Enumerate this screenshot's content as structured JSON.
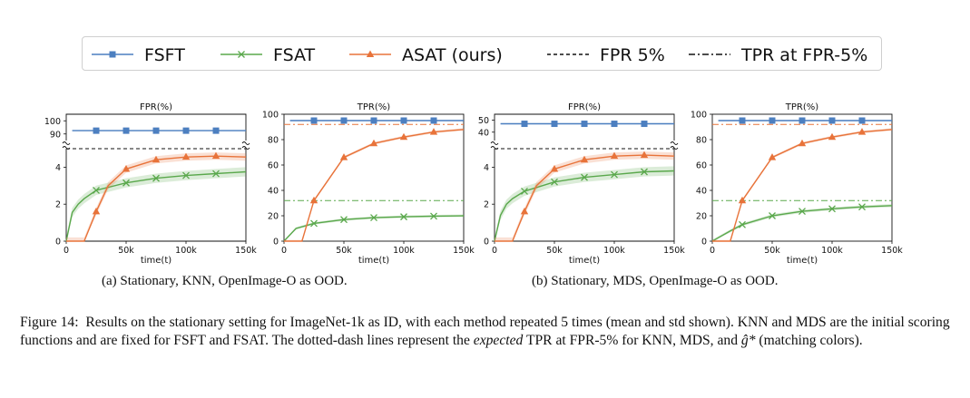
{
  "legend": {
    "entries": [
      {
        "label": "FSFT",
        "color": "#4c7fc0",
        "style": "solid",
        "marker": "square"
      },
      {
        "label": "FSAT",
        "color": "#5aa84c",
        "style": "solid",
        "marker": "x"
      },
      {
        "label": "ASAT (ours)",
        "color": "#e8733a",
        "style": "solid",
        "marker": "triangle"
      },
      {
        "label": "FPR 5%",
        "color": "#111111",
        "style": "dashed",
        "marker": "none"
      },
      {
        "label": "TPR at FPR-5%",
        "color": "#111111",
        "style": "dashdot",
        "marker": "none"
      }
    ]
  },
  "subcaptions": {
    "a": "(a)  Stationary, KNN, OpenImage-O as OOD.",
    "b": "(b)  Stationary, MDS, OpenImage-O as OOD."
  },
  "caption": {
    "label": "Figure 14:",
    "text_1": "Results on the stationary setting for ImageNet-1k as ID, with each method repeated 5 times (mean and std shown). KNN and MDS are the initial scoring functions and are fixed for FSFT and FSAT. The dotted-dash lines represent the ",
    "emph": "expected",
    "text_2": " TPR at FPR-5% for KNN, MDS, and ",
    "math": "ĝ*",
    "text_3": " (matching colors)."
  },
  "chart_data": [
    {
      "type": "line",
      "title": "FPR(%)",
      "xlabel": "time(t)",
      "x_ticks": [
        "0",
        "50k",
        "100k",
        "150k"
      ],
      "xlim": [
        0,
        150000
      ],
      "broken_axis": true,
      "upper_ylim": [
        85,
        105
      ],
      "upper_yticks": [
        "90",
        "100"
      ],
      "lower_ylim": [
        0,
        5
      ],
      "lower_yticks": [
        "0",
        "2",
        "4"
      ],
      "reference_line": {
        "name": "FPR 5%",
        "y": 5,
        "style": "dashed"
      },
      "series": [
        {
          "name": "FSFT",
          "x": [
            5000,
            25000,
            50000,
            75000,
            100000,
            125000,
            150000
          ],
          "y": [
            92.5,
            92.5,
            92.5,
            92.5,
            92.5,
            92.5,
            92.5
          ],
          "band": 0.5
        },
        {
          "name": "FSAT",
          "x": [
            0,
            5000,
            10000,
            15000,
            25000,
            50000,
            75000,
            100000,
            125000,
            150000
          ],
          "y": [
            0,
            1.55,
            2.0,
            2.3,
            2.75,
            3.15,
            3.4,
            3.55,
            3.65,
            3.75
          ],
          "band": 0.25
        },
        {
          "name": "ASAT (ours)",
          "x": [
            0,
            15000,
            25000,
            35000,
            50000,
            75000,
            100000,
            125000,
            150000
          ],
          "y": [
            0,
            0,
            1.6,
            3.0,
            3.9,
            4.4,
            4.55,
            4.6,
            4.55
          ],
          "band": 0.2
        }
      ]
    },
    {
      "type": "line",
      "title": "TPR(%)",
      "xlabel": "time(t)",
      "x_ticks": [
        "0",
        "50k",
        "100k",
        "150k"
      ],
      "xlim": [
        0,
        150000
      ],
      "ylim": [
        0,
        100
      ],
      "y_ticks": [
        "0",
        "20",
        "40",
        "60",
        "80",
        "100"
      ],
      "reference_lines": [
        {
          "name": "TPR at FPR-5%",
          "y": 32,
          "color": "#5aa84c",
          "style": "dashdot"
        },
        {
          "name": "TPR at FPR-5%",
          "y": 92,
          "color": "#e8733a",
          "style": "dashdot"
        }
      ],
      "series": [
        {
          "name": "FSFT",
          "x": [
            5000,
            25000,
            50000,
            75000,
            100000,
            125000,
            150000
          ],
          "y": [
            95,
            95,
            95,
            95,
            95,
            95,
            95
          ],
          "band": 0.5
        },
        {
          "name": "FSAT",
          "x": [
            0,
            10000,
            25000,
            50000,
            75000,
            100000,
            125000,
            150000
          ],
          "y": [
            0,
            10,
            14,
            17,
            18.5,
            19.2,
            19.7,
            20
          ],
          "band": 1.0
        },
        {
          "name": "ASAT (ours)",
          "x": [
            0,
            15000,
            25000,
            50000,
            75000,
            100000,
            125000,
            150000
          ],
          "y": [
            0,
            0,
            32,
            66,
            77,
            82,
            86,
            88
          ],
          "band": 1.0
        }
      ]
    },
    {
      "type": "line",
      "title": "FPR(%)",
      "xlabel": "time(t)",
      "x_ticks": [
        "0",
        "50k",
        "100k",
        "150k"
      ],
      "xlim": [
        0,
        150000
      ],
      "broken_axis": true,
      "upper_ylim": [
        33,
        55
      ],
      "upper_yticks": [
        "40",
        "50"
      ],
      "lower_ylim": [
        0,
        5
      ],
      "lower_yticks": [
        "0",
        "2",
        "4"
      ],
      "reference_line": {
        "name": "FPR 5%",
        "y": 5,
        "style": "dashed"
      },
      "series": [
        {
          "name": "FSFT",
          "x": [
            5000,
            25000,
            50000,
            75000,
            100000,
            125000,
            150000
          ],
          "y": [
            47.0,
            47.0,
            47.0,
            47.0,
            47.0,
            47.0,
            47.0
          ],
          "band": 0.5
        },
        {
          "name": "FSAT",
          "x": [
            0,
            5000,
            10000,
            15000,
            25000,
            50000,
            75000,
            100000,
            125000,
            150000
          ],
          "y": [
            0,
            1.4,
            2.0,
            2.3,
            2.7,
            3.2,
            3.45,
            3.6,
            3.75,
            3.8
          ],
          "band": 0.25
        },
        {
          "name": "ASAT (ours)",
          "x": [
            0,
            15000,
            25000,
            35000,
            50000,
            75000,
            100000,
            125000,
            150000
          ],
          "y": [
            0,
            0,
            1.6,
            3.0,
            3.9,
            4.4,
            4.6,
            4.65,
            4.6
          ],
          "band": 0.2
        }
      ]
    },
    {
      "type": "line",
      "title": "TPR(%)",
      "xlabel": "time(t)",
      "x_ticks": [
        "0",
        "50k",
        "100k",
        "150k"
      ],
      "xlim": [
        0,
        150000
      ],
      "ylim": [
        0,
        100
      ],
      "y_ticks": [
        "0",
        "20",
        "40",
        "60",
        "80",
        "100"
      ],
      "reference_lines": [
        {
          "name": "TPR at FPR-5%",
          "y": 32,
          "color": "#5aa84c",
          "style": "dashdot"
        },
        {
          "name": "TPR at FPR-5%",
          "y": 92,
          "color": "#e8733a",
          "style": "dashdot"
        }
      ],
      "series": [
        {
          "name": "FSFT",
          "x": [
            5000,
            25000,
            50000,
            75000,
            100000,
            125000,
            150000
          ],
          "y": [
            95,
            95,
            95,
            95,
            95,
            95,
            95
          ],
          "band": 0.5
        },
        {
          "name": "FSAT",
          "x": [
            0,
            15000,
            25000,
            50000,
            75000,
            100000,
            125000,
            150000
          ],
          "y": [
            0,
            8,
            13,
            20,
            23.5,
            25.5,
            27,
            28
          ],
          "band": 1.2
        },
        {
          "name": "ASAT (ours)",
          "x": [
            0,
            15000,
            25000,
            50000,
            75000,
            100000,
            125000,
            150000
          ],
          "y": [
            0,
            0,
            32,
            66,
            77,
            82,
            86,
            88
          ],
          "band": 1.0
        }
      ]
    }
  ]
}
